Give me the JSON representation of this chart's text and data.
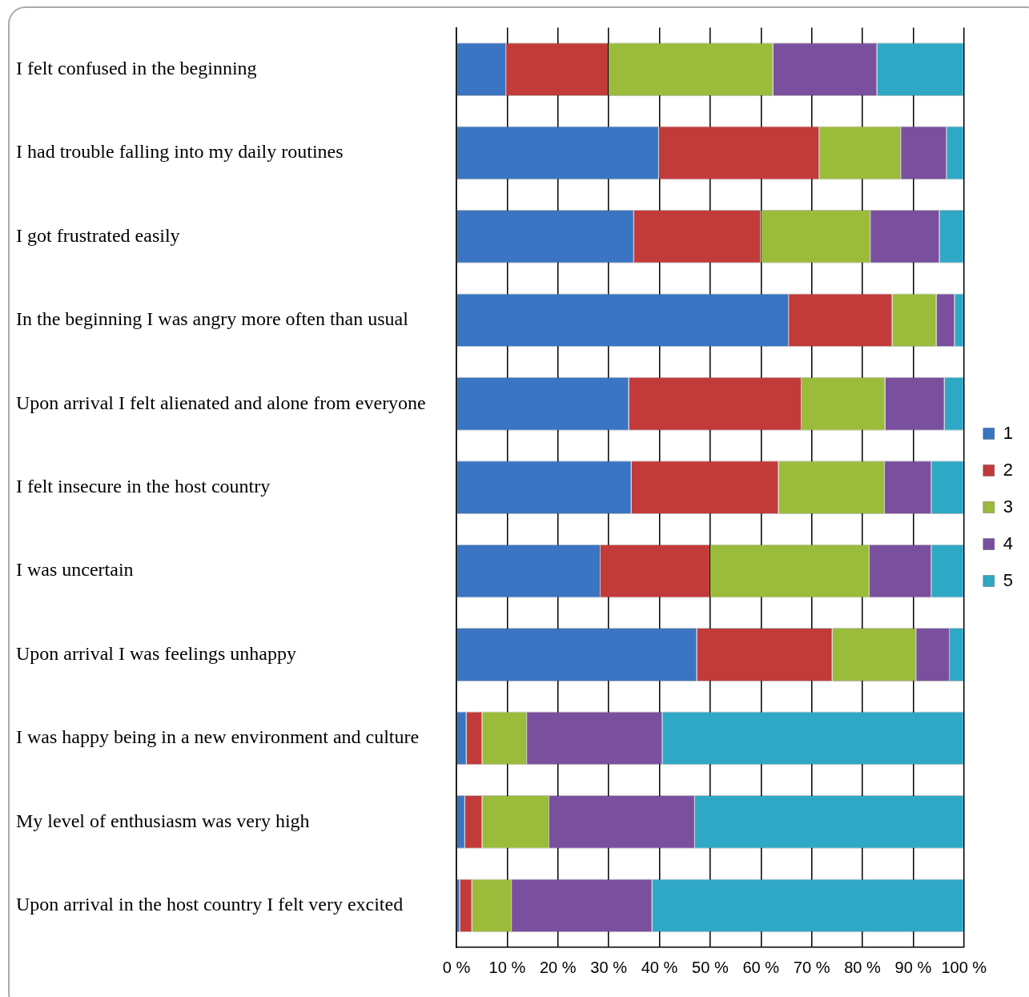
{
  "chart_data": {
    "type": "bar",
    "orientation": "horizontal",
    "stacked": true,
    "categories": [
      "I felt confused in the beginning",
      "I had trouble falling into my daily routines",
      "I got frustrated easily",
      "In the beginning I was angry more often than usual",
      "Upon arrival I felt alienated and alone from everyone",
      "I felt insecure in the host country",
      "I was uncertain",
      "Upon arrival I was feelings unhappy",
      "I was happy being in a new environment and culture",
      "My level of enthusiasm was very high",
      "Upon arrival in the host country I felt very excited"
    ],
    "series": [
      {
        "name": "1",
        "color": "#3a74c2",
        "values": [
          9.8,
          39.9,
          35,
          65.5,
          34,
          34.5,
          28.4,
          47.4,
          2,
          1.7,
          0.7
        ]
      },
      {
        "name": "2",
        "color": "#c23a3a",
        "values": [
          20.2,
          31.6,
          25,
          20.4,
          34,
          29,
          21.6,
          26.7,
          3.1,
          3.4,
          2.4
        ]
      },
      {
        "name": "3",
        "color": "#9bbb3b",
        "values": [
          32.4,
          16.1,
          21.6,
          8.7,
          16.5,
          20.9,
          31.4,
          16.5,
          8.8,
          13.2,
          7.8
        ]
      },
      {
        "name": "4",
        "color": "#7a4f9e",
        "values": [
          20.5,
          9,
          13.6,
          3.6,
          11.7,
          9.2,
          12.2,
          6.6,
          26.7,
          28.7,
          27.7
        ]
      },
      {
        "name": "5",
        "color": "#2fa8c6",
        "values": [
          17.1,
          3.4,
          4.8,
          1.8,
          3.8,
          6.4,
          6.4,
          2.8,
          59.4,
          53,
          61.4
        ]
      }
    ],
    "xlim": [
      0,
      100
    ],
    "xticks": [
      {
        "value": 0,
        "label": "0 %"
      },
      {
        "value": 10,
        "label": "10 %"
      },
      {
        "value": 20,
        "label": "20 %"
      },
      {
        "value": 30,
        "label": "30 %"
      },
      {
        "value": 40,
        "label": "40 %"
      },
      {
        "value": 50,
        "label": "50 %"
      },
      {
        "value": 60,
        "label": "60 %"
      },
      {
        "value": 70,
        "label": "70 %"
      },
      {
        "value": 80,
        "label": "80 %"
      },
      {
        "value": 90,
        "label": "90 %"
      },
      {
        "value": 100,
        "label": "100 %"
      }
    ],
    "grid": "x",
    "legend": "right"
  }
}
